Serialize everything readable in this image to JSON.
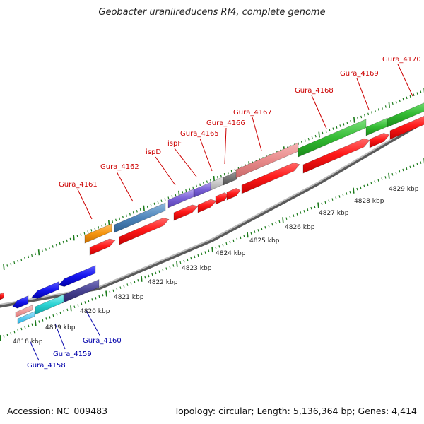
{
  "title": "Geobacter uraniireducens Rf4, complete genome",
  "footer": {
    "accession": "Accession: NC_009483",
    "summary": "Topology: circular; Length: 5,136,364 bp; Genes: 4,414"
  },
  "colors": {
    "upper_label": "#cc0000",
    "lower_label": "#0000aa",
    "backbone": "#888888",
    "tick": "#1a7a1a",
    "kbp_label": "#222222"
  },
  "kbp_labels": [
    "4818 kbp",
    "4819 kbp",
    "4820 kbp",
    "4821 kbp",
    "4822 kbp",
    "4823 kbp",
    "4824 kbp",
    "4825 kbp",
    "4826 kbp",
    "4827 kbp",
    "4828 kbp",
    "4829 kbp"
  ],
  "upper_gene_labels": [
    "Gura_4161",
    "Gura_4162",
    "ispD",
    "ispF",
    "Gura_4165",
    "Gura_4166",
    "Gura_4167",
    "Gura_4168",
    "Gura_4169",
    "Gura_4170"
  ],
  "lower_gene_labels": [
    "Gura_4158",
    "Gura_4159",
    "Gura_4160"
  ]
}
